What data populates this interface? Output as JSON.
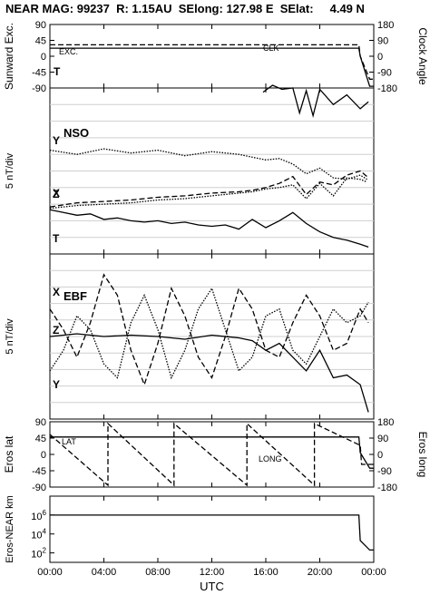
{
  "header": {
    "title": "NEAR MAG: 99237  R: 1.15AU  SElong: 127.98 E  SElat:     4.49 N"
  },
  "chart_data": [
    {
      "type": "line",
      "ylabel_left": "Sunward Exc.",
      "ylabel_right": "Clock Angle",
      "yticks_left": [
        "90",
        "45",
        "0",
        "-45",
        "-90"
      ],
      "yticks_right": [
        "180",
        "90",
        "0",
        "-90",
        "-180"
      ],
      "ylim_left": [
        -90,
        90
      ],
      "ylim_right": [
        -180,
        180
      ],
      "annotations": [
        "EXC.",
        "CLK",
        "T"
      ],
      "series": [
        {
          "name": "EXC.",
          "style": "solid",
          "axis": "left",
          "x": [
            0.0,
            22.9,
            23.0,
            23.7,
            24.0
          ],
          "y": [
            23,
            23,
            0,
            -85,
            -85
          ]
        },
        {
          "name": "CLK",
          "style": "dashed",
          "axis": "right",
          "x": [
            0.0,
            22.9,
            23.0,
            23.7,
            24.0
          ],
          "y": [
            65,
            65,
            0,
            -130,
            -130
          ]
        }
      ]
    },
    {
      "type": "line",
      "label": "NSO",
      "ylabel": "5 nT/div",
      "series_labels": [
        "Y",
        "X",
        "Z",
        "T"
      ],
      "grid": true,
      "series": [
        {
          "name": "Y",
          "style": "dotted",
          "x": [
            0,
            2,
            4,
            6,
            8,
            10,
            12,
            14,
            15,
            16,
            17,
            18,
            19,
            20,
            21,
            22,
            23,
            23.5
          ],
          "y": [
            1.5,
            1.2,
            1.6,
            1.3,
            1.5,
            1.1,
            1.4,
            1.2,
            1.0,
            0.8,
            0.9,
            0.5,
            -0.2,
            0.2,
            -0.5,
            -0.6,
            -0.3,
            -0.6
          ]
        },
        {
          "name": "X",
          "style": "dashed",
          "x": [
            0,
            2,
            4,
            6,
            8,
            10,
            12,
            14,
            15,
            16,
            17,
            18,
            19,
            20,
            21,
            22,
            23,
            23.5
          ],
          "y": [
            -2.6,
            -2.3,
            -2.2,
            -2.1,
            -1.9,
            -1.8,
            -1.6,
            -1.5,
            -1.4,
            -1.2,
            -0.9,
            -0.4,
            -1.7,
            -0.8,
            -1.0,
            -0.3,
            0.0,
            -0.4
          ]
        },
        {
          "name": "Z",
          "style": "dotted",
          "x": [
            0,
            2,
            4,
            6,
            8,
            10,
            12,
            14,
            15,
            16,
            17,
            18,
            19,
            20,
            21,
            22,
            23,
            23.5
          ],
          "y": [
            -2.7,
            -2.5,
            -2.4,
            -2.3,
            -2.1,
            -2.0,
            -1.8,
            -1.6,
            -1.5,
            -1.3,
            -1.2,
            -1.0,
            -2.0,
            -0.9,
            -1.8,
            -0.5,
            -0.6,
            -0.8
          ]
        },
        {
          "name": "T",
          "style": "solid",
          "x": [
            0,
            1,
            2,
            3,
            4,
            5,
            6,
            7,
            8,
            9,
            10,
            11,
            12,
            13,
            14,
            15,
            16,
            17,
            18,
            19,
            20,
            21,
            22,
            23,
            23.6
          ],
          "y": [
            -2.8,
            -3.0,
            -3.2,
            -3.1,
            -3.5,
            -3.4,
            -3.6,
            -3.7,
            -3.6,
            -3.8,
            -3.7,
            -3.9,
            -4.0,
            -3.9,
            -4.2,
            -3.5,
            -4.1,
            -3.6,
            -3.0,
            -3.8,
            -4.4,
            -4.8,
            -5.0,
            -5.3,
            -5.5
          ]
        },
        {
          "name": "T-upper",
          "style": "solid",
          "x": [
            15.8,
            16.5,
            17.2,
            18.0,
            18.5,
            19.0,
            19.5,
            20.0,
            21.0,
            22.0,
            23.0,
            23.6
          ],
          "y": [
            5.7,
            6.2,
            5.9,
            6.0,
            4.2,
            5.8,
            4.0,
            5.9,
            4.8,
            5.5,
            4.5,
            5.0
          ]
        }
      ]
    },
    {
      "type": "line",
      "label": "EBF",
      "ylabel": "5 nT/div",
      "series_labels": [
        "X",
        "Z",
        "Y"
      ],
      "grid": true,
      "series": [
        {
          "name": "X",
          "style": "dashed",
          "x": [
            0,
            1,
            2,
            3,
            4,
            5,
            6,
            7,
            8,
            9,
            10,
            11,
            12,
            13,
            14,
            15,
            16,
            17,
            18,
            19,
            20,
            21,
            22,
            23,
            23.6
          ],
          "y": [
            2.0,
            0.5,
            -1.5,
            1.0,
            4.5,
            3.0,
            -1.0,
            -3.5,
            -0.5,
            3.5,
            1.5,
            -1.5,
            -3.0,
            0.0,
            3.5,
            2.0,
            -1.0,
            -1.5,
            1.0,
            3.0,
            1.5,
            -1.0,
            -0.5,
            2.0,
            1.0
          ]
        },
        {
          "name": "Z",
          "style": "solid",
          "x": [
            0,
            2,
            4,
            6,
            8,
            10,
            12,
            14,
            15,
            16,
            17,
            18,
            19,
            20,
            21,
            22,
            23,
            23.6
          ],
          "y": [
            0.0,
            0.2,
            0.0,
            0.1,
            0.0,
            -0.2,
            0.1,
            -0.1,
            -0.3,
            -1.0,
            -0.5,
            -1.5,
            -2.5,
            -1.0,
            -3.0,
            -2.8,
            -3.5,
            -5.5
          ]
        },
        {
          "name": "Y",
          "style": "dotted",
          "x": [
            0,
            1,
            2,
            3,
            4,
            5,
            6,
            7,
            8,
            9,
            10,
            11,
            12,
            13,
            14,
            15,
            16,
            17,
            18,
            19,
            20,
            21,
            22,
            23,
            23.6
          ],
          "y": [
            -2.5,
            -1.0,
            1.5,
            0.5,
            -2.0,
            -3.0,
            1.0,
            3.0,
            0.5,
            -3.0,
            -1.0,
            2.0,
            3.5,
            0.5,
            -2.5,
            -1.5,
            1.5,
            2.0,
            -1.0,
            -2.0,
            0.0,
            2.0,
            1.0,
            1.5,
            2.5
          ]
        }
      ]
    },
    {
      "type": "line",
      "ylabel_left": "Eros lat",
      "ylabel_right": "Eros long",
      "yticks_left": [
        "90",
        "45",
        "0",
        "-45",
        "-90"
      ],
      "yticks_right": [
        "180",
        "90",
        "0",
        "-90",
        "-180"
      ],
      "ylim_left": [
        -90,
        90
      ],
      "ylim_right": [
        -180,
        180
      ],
      "annotations": [
        "LAT",
        "LONG"
      ],
      "series": [
        {
          "name": "LAT",
          "style": "solid",
          "axis": "left",
          "x": [
            0.0,
            22.9,
            23.0,
            23.7,
            24.0
          ],
          "y": [
            48,
            48,
            5,
            -38,
            -38
          ]
        },
        {
          "name": "LONG",
          "style": "dashed",
          "axis": "right",
          "x": [
            0.0,
            4.3,
            4.3,
            9.2,
            9.2,
            14.6,
            14.6,
            19.6,
            19.6,
            23.0,
            23.1,
            24.0
          ],
          "y": [
            110,
            -170,
            170,
            -170,
            170,
            -170,
            170,
            -170,
            170,
            50,
            -55,
            -55
          ]
        }
      ]
    },
    {
      "type": "line",
      "ylabel": "Eros-NEAR km",
      "yscale": "log",
      "yticks": [
        "10^6",
        "10^4",
        "10^2"
      ],
      "ylim": [
        10,
        100000000
      ],
      "series": [
        {
          "name": "Eros-NEAR km",
          "style": "solid",
          "x": [
            0.0,
            22.9,
            23.0,
            23.7,
            24.0
          ],
          "y": [
            1000000,
            1000000,
            2000,
            200,
            200
          ]
        }
      ]
    }
  ],
  "xaxis": {
    "label": "UTC",
    "ticks": [
      "00:00",
      "04:00",
      "08:00",
      "12:00",
      "16:00",
      "20:00",
      "00:00"
    ],
    "range": [
      0,
      24
    ]
  }
}
